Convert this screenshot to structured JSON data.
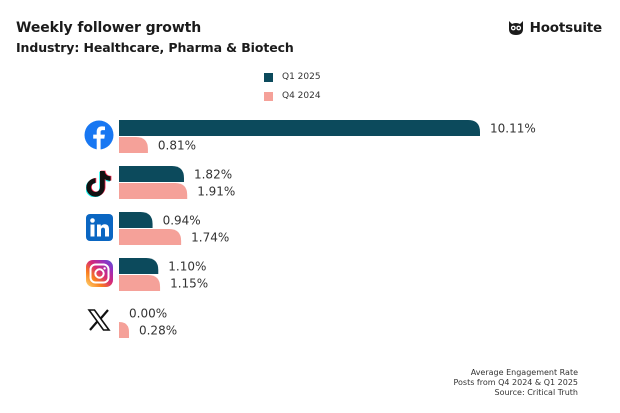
{
  "header": {
    "title": "Weekly follower growth",
    "subtitle": "Industry: Healthcare, Pharma & Biotech",
    "brand": "Hootsuite"
  },
  "footer": {
    "line1": "Average Engagement Rate",
    "line2": "Posts from Q4 2024 & Q1 2025",
    "line3": "Source: Critical Truth"
  },
  "colors": {
    "q1_2025": "#0c4a5c",
    "q4_2024": "#f5a199",
    "facebook": "#1877f2",
    "linkedin": "#0a66c2"
  },
  "chart_data": {
    "type": "bar",
    "orientation": "horizontal",
    "categories": [
      "Facebook",
      "TikTok",
      "LinkedIn",
      "Instagram",
      "X"
    ],
    "category_icons": [
      "facebook-icon",
      "tiktok-icon",
      "linkedin-icon",
      "instagram-icon",
      "x-icon"
    ],
    "series": [
      {
        "name": "Q1 2025",
        "values": [
          10.11,
          1.82,
          0.94,
          1.1,
          0.0
        ],
        "labels": [
          "10.11%",
          "1.82%",
          "0.94%",
          "1.10%",
          "0.00%"
        ]
      },
      {
        "name": "Q4 2024",
        "values": [
          0.81,
          1.91,
          1.74,
          1.15,
          0.28
        ],
        "labels": [
          "0.81%",
          "1.91%",
          "1.74%",
          "1.15%",
          "0.28%"
        ]
      }
    ],
    "title": "Weekly follower growth",
    "subtitle": "Industry: Healthcare, Pharma & Biotech",
    "xlabel": "",
    "ylabel": "",
    "xlim": [
      0,
      10.11
    ],
    "grid": false,
    "legend_position": "top-center"
  }
}
